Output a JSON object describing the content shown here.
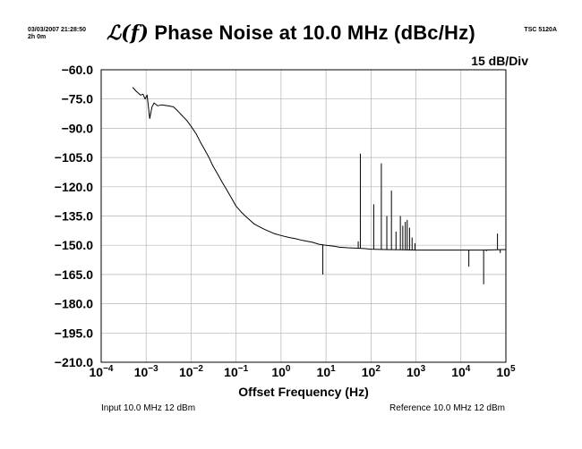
{
  "header": {
    "timestamp": "03/03/2007 21:28:50",
    "duration": "2h 0m",
    "instrument": "TSC 5120A",
    "title_prefix": "ℒ(f)",
    "title_text": "Phase Noise at 10.0 MHz (dBc/Hz)",
    "scale": "15 dB/Div"
  },
  "footer": {
    "input": "Input 10.0 MHz 12 dBm",
    "reference": "Reference 10.0 MHz 12 dBm"
  },
  "chart_data": {
    "type": "line",
    "xlabel": "Offset Frequency (Hz)",
    "ylabel": "",
    "x_scale": "log",
    "xlim": [
      0.0001,
      100000
    ],
    "ylim": [
      -210,
      -60
    ],
    "grid": true,
    "x_ticks": [
      {
        "base": "10",
        "exp": "−4"
      },
      {
        "base": "10",
        "exp": "−3"
      },
      {
        "base": "10",
        "exp": "−2"
      },
      {
        "base": "10",
        "exp": "−1"
      },
      {
        "base": "10",
        "exp": "0"
      },
      {
        "base": "10",
        "exp": "1"
      },
      {
        "base": "10",
        "exp": "2"
      },
      {
        "base": "10",
        "exp": "3"
      },
      {
        "base": "10",
        "exp": "4"
      },
      {
        "base": "10",
        "exp": "5"
      }
    ],
    "y_ticks": [
      "−60.0",
      "−75.0",
      "−90.0",
      "−105.0",
      "−120.0",
      "−135.0",
      "−150.0",
      "−165.0",
      "−180.0",
      "−195.0",
      "−210.0"
    ],
    "series": [
      {
        "x": [
          0.0005,
          0.0006,
          0.00075,
          0.00085,
          0.00095,
          0.00105,
          0.0012,
          0.00135,
          0.0015,
          0.0018,
          0.0022,
          0.003,
          0.004,
          0.005,
          0.006,
          0.008,
          0.01,
          0.013,
          0.016,
          0.02,
          0.025,
          0.03,
          0.04,
          0.05,
          0.06,
          0.08,
          0.1,
          0.13,
          0.16,
          0.2,
          0.25,
          0.3,
          0.4,
          0.5,
          0.7,
          1,
          1.5,
          2,
          3,
          5,
          7,
          10,
          15,
          20,
          30,
          50,
          70,
          100,
          200,
          500,
          1000,
          2000,
          5000,
          10000,
          30000,
          100000
        ],
        "y": [
          -69,
          -71,
          -73,
          -72.5,
          -75,
          -73,
          -85,
          -79,
          -77,
          -78.5,
          -78,
          -78.5,
          -79,
          -81,
          -83,
          -86,
          -89,
          -93,
          -97,
          -101,
          -105,
          -109,
          -114,
          -118,
          -121,
          -126,
          -130,
          -133,
          -135,
          -137,
          -139,
          -140,
          -141.5,
          -142.5,
          -144,
          -145,
          -146,
          -146.5,
          -147.5,
          -148.5,
          -149.5,
          -150,
          -150.5,
          -151,
          -151.3,
          -151.5,
          -151.7,
          -152,
          -152.2,
          -152.3,
          -152.5,
          -152.5,
          -152.5,
          -152.5,
          -152.5,
          -152.2
        ]
      }
    ],
    "spurs": [
      {
        "x": 8.5,
        "y": -165
      },
      {
        "x": 52,
        "y": -148
      },
      {
        "x": 58,
        "y": -103
      },
      {
        "x": 115,
        "y": -129
      },
      {
        "x": 170,
        "y": -108
      },
      {
        "x": 225,
        "y": -135
      },
      {
        "x": 285,
        "y": -122
      },
      {
        "x": 360,
        "y": -143
      },
      {
        "x": 450,
        "y": -135
      },
      {
        "x": 510,
        "y": -140
      },
      {
        "x": 580,
        "y": -138
      },
      {
        "x": 640,
        "y": -137
      },
      {
        "x": 720,
        "y": -141
      },
      {
        "x": 820,
        "y": -146
      },
      {
        "x": 950,
        "y": -149
      },
      {
        "x": 15000,
        "y": -161
      },
      {
        "x": 32000,
        "y": -170
      },
      {
        "x": 37000,
        "y": -153
      },
      {
        "x": 65000,
        "y": -144
      },
      {
        "x": 75000,
        "y": -154
      }
    ]
  }
}
